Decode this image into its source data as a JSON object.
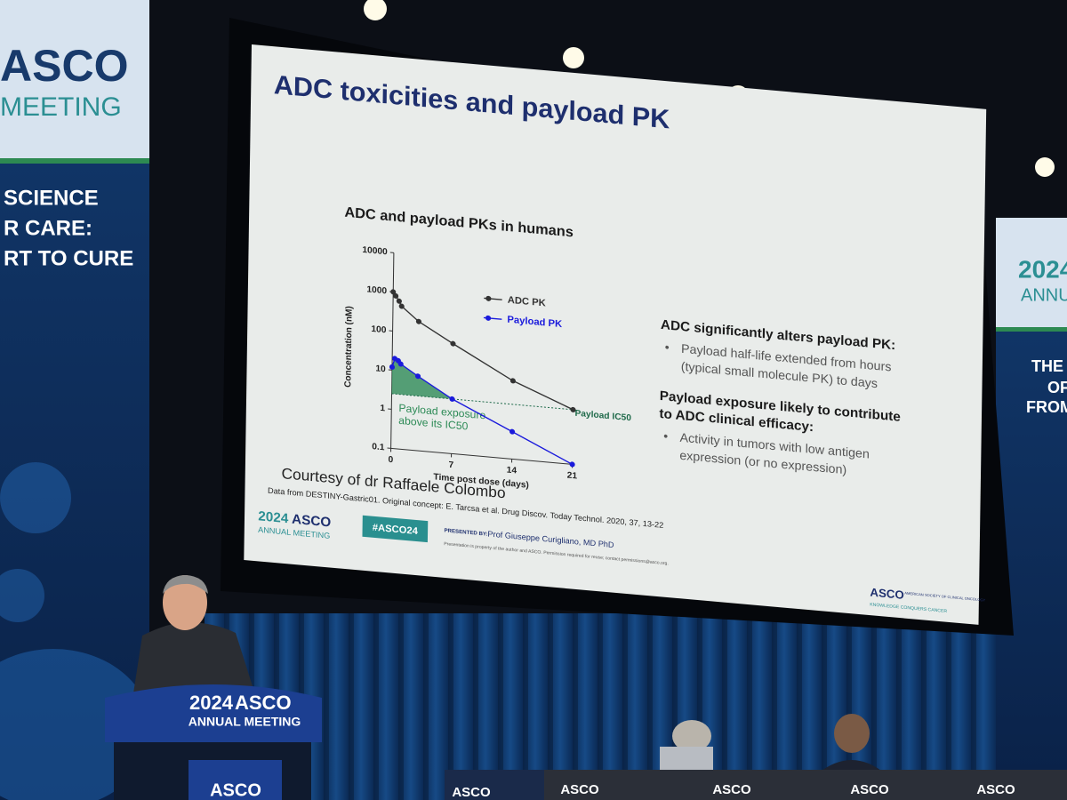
{
  "banners": {
    "left": {
      "brand": "ASCO",
      "event": "MEETING",
      "lines": [
        "SCIENCE",
        "R CARE:",
        "RT TO CURE"
      ]
    },
    "right": {
      "year": "2024",
      "event": "ANNUAL",
      "lines": [
        "THE A",
        "OF",
        "FROM C"
      ]
    }
  },
  "slide": {
    "title": "ADC toxicities and payload PK",
    "chart_data": {
      "type": "line",
      "title": "ADC and payload PKs in humans",
      "x_label": "Time post dose (days)",
      "y_label": "Concentration (nM)",
      "x": [
        0,
        0.3,
        0.7,
        1,
        3,
        7,
        14,
        21
      ],
      "xlim": [
        0,
        21
      ],
      "xticks": [
        0,
        7,
        14,
        21
      ],
      "ylim": [
        0.1,
        10000
      ],
      "yticks": [
        0.1,
        1,
        10,
        100,
        1000,
        10000
      ],
      "log_y": true,
      "legend": "upper right",
      "series": [
        {
          "name": "ADC PK",
          "color": "#333333",
          "values": [
            1000,
            800,
            600,
            450,
            200,
            65,
            10,
            2.5
          ]
        },
        {
          "name": "Payload PK",
          "color": "#1a1adc",
          "values": [
            12,
            20,
            18,
            15,
            8,
            2.5,
            0.5,
            0.1
          ]
        }
      ],
      "reference_line": {
        "value": 2.5,
        "label": "Payload IC50",
        "color": "#1f6a4a"
      },
      "fill_label": [
        "Payload exposure",
        "above its IC50"
      ],
      "fill_color": "#2e8b57"
    },
    "points": [
      {
        "heading": "ADC significantly alters payload PK:",
        "bullets": [
          [
            "Payload half-life extended from hours",
            "(typical small molecule PK) to days"
          ]
        ]
      },
      {
        "heading": "Payload exposure likely to contribute",
        "heading2": "to ADC clinical efficacy:",
        "bullets": [
          [
            "Activity in tumors with low antigen",
            "expression (or no expression)"
          ]
        ]
      }
    ],
    "bullet_symbol": "•",
    "courtesy": "Courtesy of dr Raffaele Colombo",
    "source": "Data from DESTINY-Gastric01. Original concept: E. Tarcsa et al. Drug Discov. Today Technol. 2020, 37, 13-22",
    "footer": {
      "logo_year": "2024",
      "logo_brand": "ASCO",
      "logo_event": "ANNUAL MEETING",
      "hashtag": "#ASCO24",
      "presented_by": "PRESENTED BY:",
      "presenter": "Prof Giuseppe Curigliano, MD PhD",
      "notice": "Presentation is property of the author and ASCO. Permission required for reuse; contact permissions@asco.org.",
      "society": "ASCO",
      "society_name": "AMERICAN SOCIETY OF CLINICAL ONCOLOGY",
      "tagline": "KNOWLEDGE CONQUERS CANCER"
    }
  },
  "podium": {
    "year": "2024",
    "brand": "ASCO",
    "event": "ANNUAL MEETING",
    "base": "ASCO"
  },
  "table": {
    "signs": [
      "ASCO",
      "ASCO",
      "ASCO",
      "ASCO",
      "ASCO"
    ]
  }
}
